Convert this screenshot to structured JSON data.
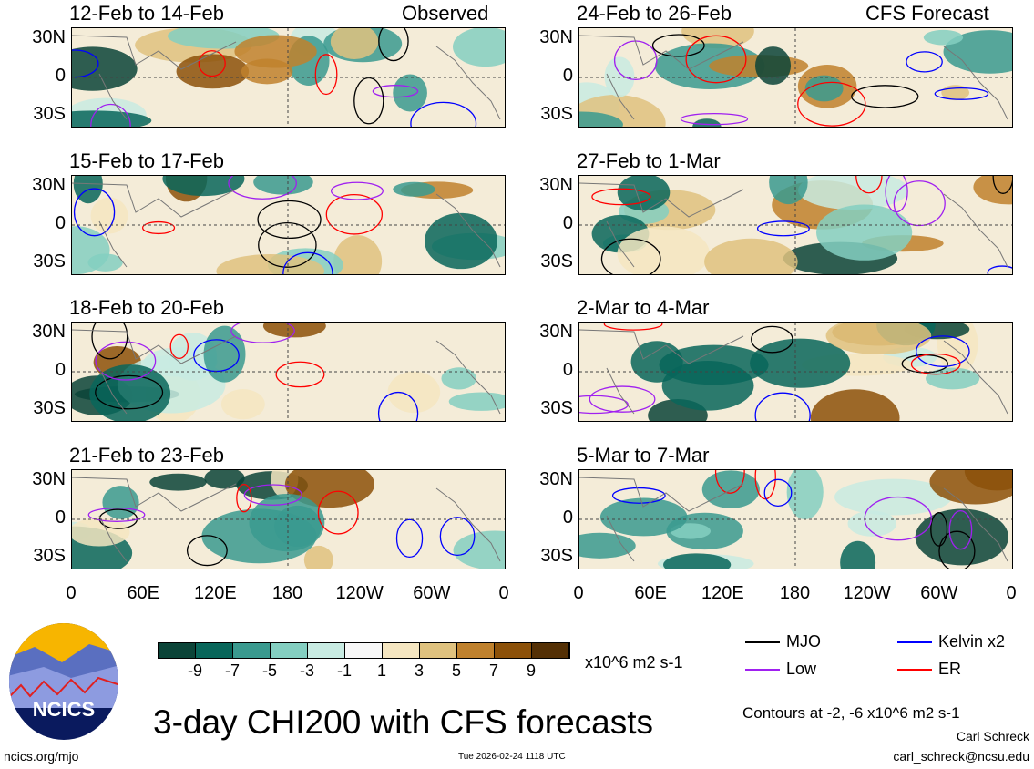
{
  "header": {
    "left_label": "Observed",
    "right_label": "CFS Forecast"
  },
  "panels": [
    {
      "title": "12-Feb to 14-Feb",
      "column": "observed"
    },
    {
      "title": "15-Feb to 17-Feb",
      "column": "observed"
    },
    {
      "title": "18-Feb to 20-Feb",
      "column": "observed"
    },
    {
      "title": "21-Feb to 23-Feb",
      "column": "observed"
    },
    {
      "title": "24-Feb to 26-Feb",
      "column": "forecast"
    },
    {
      "title": "27-Feb to 1-Mar",
      "column": "forecast"
    },
    {
      "title": "2-Mar to 4-Mar",
      "column": "forecast"
    },
    {
      "title": "5-Mar to 7-Mar",
      "column": "forecast"
    }
  ],
  "axes": {
    "lat_ticks": [
      "30N",
      "0",
      "30S"
    ],
    "lon_ticks": [
      "0",
      "60E",
      "120E",
      "180",
      "120W",
      "60W",
      "0"
    ]
  },
  "colorbar": {
    "colors": [
      "#0b4438",
      "#08665a",
      "#3a9a8f",
      "#84cfc1",
      "#c8ebe2",
      "#f7f7f7",
      "#f5e6c1",
      "#dfc27f",
      "#bf812d",
      "#8c5109",
      "#543005"
    ],
    "labels": [
      "-9",
      "-7",
      "-5",
      "-3",
      "-1",
      "1",
      "3",
      "5",
      "7",
      "9"
    ],
    "units": "x10^6 m2 s-1"
  },
  "legend": [
    {
      "label": "MJO",
      "color": "#000000"
    },
    {
      "label": "Kelvin x2",
      "color": "#0000ff"
    },
    {
      "label": "Low",
      "color": "#a020f0"
    },
    {
      "label": "ER",
      "color": "#ff0000"
    }
  ],
  "contours_note": "Contours at -2, -6 x10^6 m2 s-1",
  "title": "3-day CHI200 with CFS forecasts",
  "logo_text": "NCICS",
  "footer": {
    "url": "ncics.org/mjo",
    "timestamp": "Tue 2026-02-24 1118 UTC",
    "author": "Carl Schreck",
    "email": "carl_schreck@ncsu.edu"
  }
}
